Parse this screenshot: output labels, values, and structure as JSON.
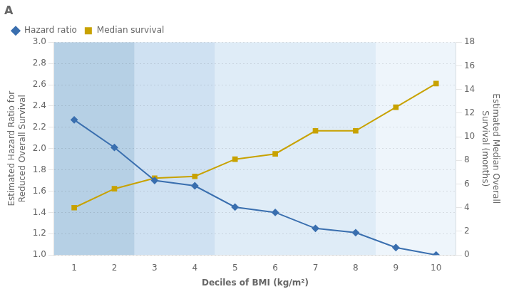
{
  "chart_data": {
    "type": "line",
    "title": "A",
    "xlabel": "Deciles of BMI (kg/m²)",
    "ylabel": "Estimated Hazard Ratio for\nReduced Overall Survival",
    "y2label": "Estimated Median Overall\nSurvival (months)",
    "x": [
      1,
      2,
      3,
      4,
      5,
      6,
      7,
      8,
      9,
      10
    ],
    "xlim": [
      0.5,
      10.5
    ],
    "xticks": [
      1,
      2,
      3,
      4,
      5,
      6,
      7,
      8,
      9,
      10
    ],
    "ylim": [
      1.0,
      3.0
    ],
    "yticks": [
      {
        "value": 1.0,
        "label": "1.0"
      },
      1.2,
      1.4,
      1.6,
      1.8,
      {
        "value": 2.0,
        "label": "2.0"
      },
      2.2,
      2.4,
      2.6,
      2.8,
      {
        "value": 3.0,
        "label": "3.0"
      }
    ],
    "y2lim": [
      0,
      18
    ],
    "y2ticks": [
      0,
      2,
      4,
      6,
      8,
      10,
      12,
      14,
      16,
      18
    ],
    "grid": true,
    "legend": "upper left",
    "bands": [
      {
        "x_start": 0.5,
        "x_end": 2.5,
        "color": "#7aaad0"
      },
      {
        "x_start": 2.5,
        "x_end": 4.5,
        "color": "#a8c8e8"
      },
      {
        "x_start": 4.5,
        "x_end": 8.5,
        "color": "#c5dcf0"
      },
      {
        "x_start": 8.5,
        "x_end": 10.5,
        "color": "#e0ecf8"
      }
    ],
    "series": [
      {
        "name": "Hazard ratio",
        "color": "#3a6faf",
        "marker": "diamond",
        "line_style": "solid",
        "values": [
          2.27,
          2.01,
          1.7,
          1.65,
          1.45,
          1.4,
          1.25,
          1.21,
          1.07,
          1.0
        ]
      },
      {
        "name": "Median survival",
        "color": "#c8a200",
        "marker": "square",
        "line_style": "solid",
        "axis": "y2",
        "values": [
          4.0,
          5.6,
          6.5,
          6.65,
          8.1,
          8.55,
          10.5,
          10.5,
          12.5,
          14.5
        ]
      }
    ]
  }
}
